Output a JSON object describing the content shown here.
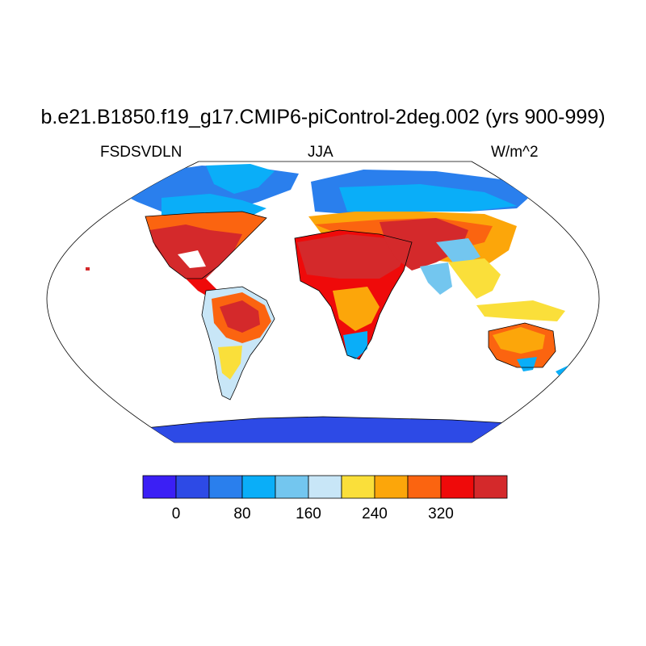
{
  "map": {
    "title": "b.e21.B1850.f19_g17.CMIP6-piControl-2deg.002 (yrs 900-999)",
    "left_label": "FSDSVDLN",
    "center_label": "JJA",
    "right_label": "W/m^2"
  },
  "colorbar": {
    "colors": [
      "#3b1ff5",
      "#2d4ae6",
      "#2a7fed",
      "#0aaef8",
      "#73c6ef",
      "#c8e6f7",
      "#fadf3a",
      "#fca60a",
      "#fb6410",
      "#ef0a0a",
      "#d4292b"
    ],
    "tick_labels": [
      "0",
      "80",
      "160",
      "240",
      "320"
    ]
  }
}
